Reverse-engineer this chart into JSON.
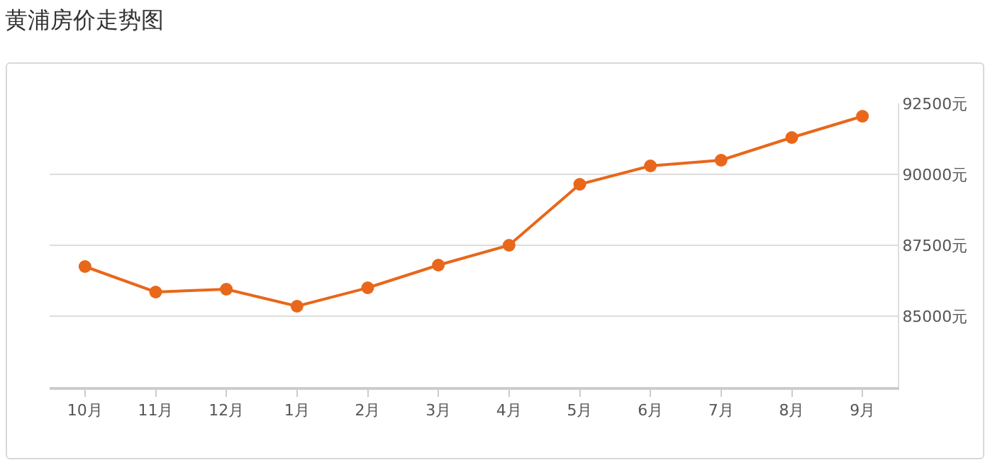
{
  "chart_data": {
    "type": "line",
    "title": "黄浦房价走势图",
    "categories": [
      "10月",
      "11月",
      "12月",
      "1月",
      "2月",
      "3月",
      "4月",
      "5月",
      "6月",
      "7月",
      "8月",
      "9月"
    ],
    "series": [
      {
        "color": "#e8671b",
        "values": [
          86750,
          85850,
          85950,
          85350,
          86000,
          86800,
          87500,
          89650,
          90300,
          90500,
          91300,
          92050
        ]
      }
    ],
    "ylim": [
      82500,
      92500
    ],
    "yticks": [
      {
        "value": 85000,
        "label": "85000元"
      },
      {
        "value": 87500,
        "label": "87500元"
      },
      {
        "value": 90000,
        "label": "90000元"
      },
      {
        "value": 92500,
        "label": "92500元"
      }
    ],
    "grid": "y",
    "marker": "circle",
    "line_style": "solid"
  }
}
